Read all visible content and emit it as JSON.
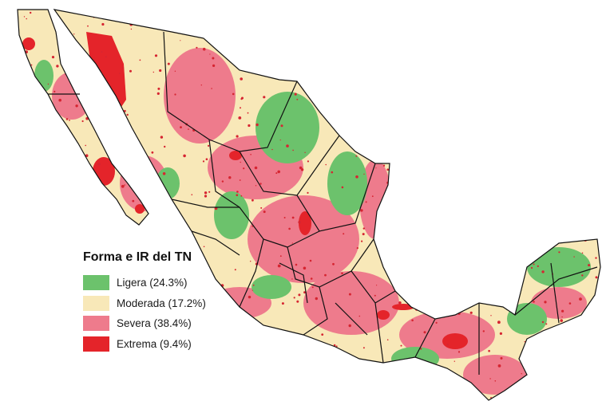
{
  "legend": {
    "title": "Forma e IR del TN",
    "items": [
      {
        "name": "ligera",
        "label": "Ligera (24.3%)",
        "percent": 24.3,
        "color": "#6cc26c"
      },
      {
        "name": "moderada",
        "label": "Moderada (17.2%)",
        "percent": 17.2,
        "color": "#f8e8b8"
      },
      {
        "name": "severa",
        "label": "Severa (38.4%)",
        "percent": 38.4,
        "color": "#ee7b8c"
      },
      {
        "name": "extrema",
        "label": "Extrema (9.4%)",
        "percent": 9.4,
        "color": "#e4242a"
      }
    ]
  },
  "map_colors": {
    "border": "#111111",
    "background": "#ffffff",
    "speckle": "#d62531"
  }
}
